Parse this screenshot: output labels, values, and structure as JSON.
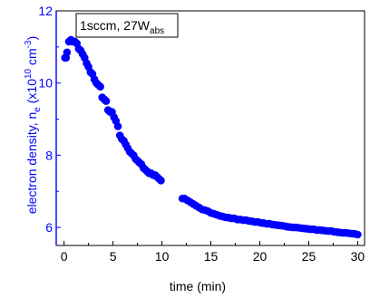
{
  "chart_data": {
    "type": "scatter",
    "title": "",
    "xlabel": "time (min)",
    "ylabel": {
      "prefix": "electron density, n",
      "sub": "e",
      "mid": " (x10",
      "sup1": "10",
      "mid2": " cm",
      "sup2": "-3",
      "suffix": ")"
    },
    "legend": {
      "main": "1sccm, 27W",
      "sub": "abs",
      "placement": "top-left"
    },
    "xlim": [
      -0.8,
      30.7
    ],
    "ylim": [
      5.5,
      12
    ],
    "x_ticks": [
      0,
      5,
      10,
      15,
      20,
      25,
      30
    ],
    "y_ticks": [
      6,
      8,
      10,
      12
    ],
    "x_tick_labels": [
      "0",
      "5",
      "10",
      "15",
      "20",
      "25",
      "30"
    ],
    "y_tick_labels": [
      "6",
      "8",
      "10",
      "12"
    ],
    "grid": false,
    "colors": {
      "marker": "#0000FF",
      "y_axis": "#0000FF",
      "x_axis": "#000000"
    },
    "series": [
      {
        "x": [
          0.1,
          0.2,
          0.3,
          0.5,
          0.7,
          0.9,
          1.1,
          1.3,
          1.5,
          1.7,
          1.9,
          2.1,
          2.3,
          2.5,
          2.7,
          2.9,
          3.1,
          3.3,
          3.5,
          3.7,
          3.9,
          4.1,
          4.3,
          4.5,
          4.7,
          4.9,
          5.1,
          5.3,
          5.5,
          5.7,
          5.9,
          6.1,
          6.3,
          6.5,
          6.7,
          6.9,
          7.1,
          7.3,
          7.5,
          7.7,
          7.9,
          8.1,
          8.3,
          8.5,
          8.7,
          8.9,
          9.1,
          9.3,
          9.5,
          9.7,
          9.9,
          12.1,
          12.3,
          12.6,
          12.9,
          13.2,
          13.5,
          13.8,
          14.1,
          14.4,
          14.7,
          15.0,
          15.3,
          15.6,
          15.9,
          16.2,
          16.5,
          16.8,
          17.1,
          17.4,
          17.7,
          18.0,
          18.3,
          18.6,
          18.9,
          19.2,
          19.5,
          19.8,
          20.1,
          20.4,
          20.7,
          21.0,
          21.3,
          21.6,
          21.9,
          22.2,
          22.5,
          22.8,
          23.1,
          23.4,
          23.7,
          24.0,
          24.3,
          24.6,
          24.9,
          25.2,
          25.5,
          25.8,
          26.1,
          26.4,
          26.7,
          27.0,
          27.3,
          27.6,
          27.9,
          28.2,
          28.5,
          28.8,
          29.1,
          29.4,
          29.7,
          30.0
        ],
        "y": [
          10.7,
          10.7,
          10.85,
          11.15,
          11.2,
          11.15,
          11.15,
          11.1,
          10.95,
          10.9,
          10.8,
          10.7,
          10.55,
          10.45,
          10.3,
          10.25,
          10.1,
          10.0,
          9.95,
          9.9,
          9.6,
          9.55,
          9.5,
          9.25,
          9.2,
          9.2,
          9.05,
          8.95,
          8.8,
          8.55,
          8.45,
          8.4,
          8.3,
          8.2,
          8.1,
          8.05,
          8.0,
          7.9,
          7.85,
          7.8,
          7.75,
          7.65,
          7.6,
          7.55,
          7.5,
          7.5,
          7.45,
          7.45,
          7.4,
          7.35,
          7.3,
          6.8,
          6.8,
          6.75,
          6.7,
          6.65,
          6.6,
          6.55,
          6.5,
          6.48,
          6.45,
          6.4,
          6.38,
          6.35,
          6.32,
          6.3,
          6.28,
          6.27,
          6.25,
          6.25,
          6.22,
          6.22,
          6.2,
          6.2,
          6.18,
          6.17,
          6.15,
          6.15,
          6.13,
          6.12,
          6.1,
          6.1,
          6.08,
          6.07,
          6.06,
          6.05,
          6.04,
          6.02,
          6.01,
          6.0,
          6.0,
          5.99,
          5.98,
          5.97,
          5.96,
          5.95,
          5.95,
          5.93,
          5.93,
          5.92,
          5.91,
          5.9,
          5.9,
          5.88,
          5.87,
          5.86,
          5.85,
          5.85,
          5.84,
          5.83,
          5.82,
          5.8
        ]
      }
    ]
  }
}
